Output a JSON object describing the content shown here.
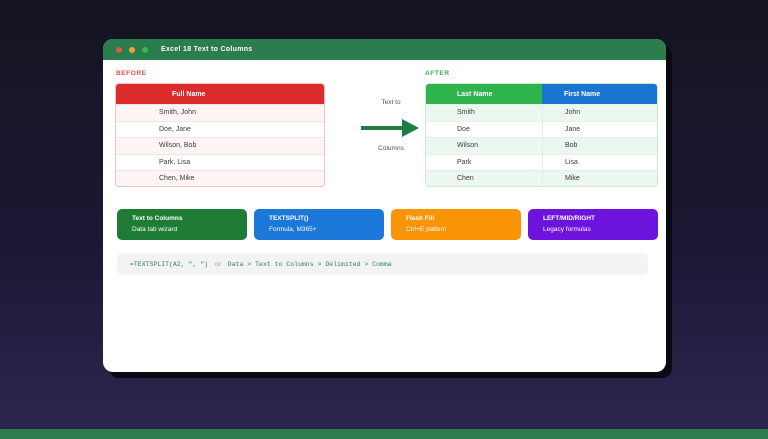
{
  "window": {
    "title": "Excel 18 Text to Columns"
  },
  "before": {
    "label": "BEFORE",
    "table": {
      "header": "Full Name",
      "rows": [
        "Smith, John",
        "Doe, Jane",
        "Wilson, Bob",
        "Park, Lisa",
        "Chen, Mike"
      ]
    }
  },
  "transform": {
    "label_top": "Text to",
    "label_bottom": "Columns"
  },
  "after": {
    "label": "AFTER",
    "table": {
      "columns": [
        {
          "header": "Last Name"
        },
        {
          "header": "First Name"
        }
      ],
      "rows": [
        [
          "Smith",
          "John"
        ],
        [
          "Doe",
          "Jane"
        ],
        [
          "Wilson",
          "Bob"
        ],
        [
          "Park",
          "Lisa"
        ],
        [
          "Chen",
          "Mike"
        ]
      ]
    }
  },
  "methods": [
    {
      "title": "Text to Columns",
      "subtitle": "Data tab wizard",
      "color": "#1e7c34"
    },
    {
      "title": "TEXTSPLIT()",
      "subtitle": "Formula, M365+",
      "color": "#1b78d8"
    },
    {
      "title": "Flash Fill",
      "subtitle": "Ctrl+E pattern",
      "color": "#f89406"
    },
    {
      "title": "LEFT/MID/RIGHT",
      "subtitle": "Legacy formulas",
      "color": "#6c13dd"
    }
  ],
  "formula_bar": {
    "formula": "=TEXTSPLIT(A2, \", \")",
    "separator": "or",
    "path": "Data > Text to Columns > Delimited > Comma"
  },
  "colors": {
    "titlebar": "#2b7d4e",
    "dot_red": "#de564d",
    "dot_yellow": "#e7a43c",
    "dot_green": "#3cb45a",
    "before_header": "#dc2b2b",
    "green_header": "#2eb34d",
    "blue_header": "#1a75d2",
    "arrow": "#1e7c45",
    "bottom_bar": "#2e7e52"
  }
}
